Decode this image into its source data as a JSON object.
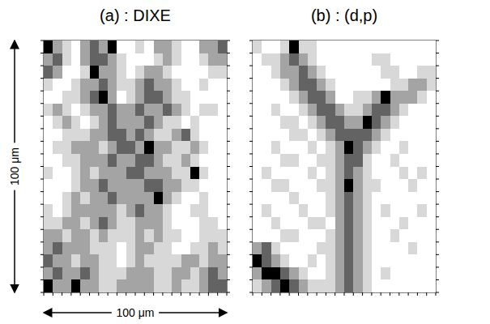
{
  "chart_data": [
    {
      "type": "heatmap",
      "title": "(a) : DIXE",
      "xlim": [
        0,
        100
      ],
      "ylim": [
        0,
        100
      ],
      "xticks": [
        0,
        5,
        10,
        15,
        20,
        25,
        30,
        35,
        40,
        45,
        50,
        55,
        60,
        65,
        70,
        75,
        80,
        85,
        90,
        95,
        100
      ],
      "yticks": [
        0,
        5,
        10,
        15,
        20,
        25,
        30,
        35,
        40,
        45,
        50,
        55,
        60,
        65,
        70,
        75,
        80,
        85,
        90,
        95,
        100
      ],
      "tick_labels": false,
      "colors": [
        "#ffffff",
        "#d8d8d8",
        "#a4a4a4",
        "#636363",
        "#000000"
      ],
      "value_range": [
        0,
        4
      ],
      "cells": [
        [
          4,
          2,
          1,
          0,
          2,
          3,
          2,
          4,
          0,
          0,
          1,
          0,
          2,
          2,
          1,
          0,
          0,
          2,
          2,
          3
        ],
        [
          2,
          3,
          1,
          0,
          2,
          3,
          3,
          2,
          1,
          0,
          0,
          0,
          1,
          2,
          1,
          0,
          0,
          1,
          2,
          2
        ],
        [
          3,
          2,
          0,
          0,
          1,
          4,
          2,
          2,
          1,
          0,
          1,
          2,
          2,
          1,
          0,
          0,
          0,
          0,
          1,
          1
        ],
        [
          1,
          0,
          0,
          1,
          2,
          2,
          3,
          2,
          1,
          1,
          2,
          3,
          2,
          2,
          1,
          0,
          0,
          1,
          0,
          0
        ],
        [
          0,
          0,
          1,
          1,
          2,
          3,
          4,
          2,
          0,
          1,
          2,
          3,
          3,
          2,
          1,
          1,
          0,
          0,
          0,
          0
        ],
        [
          1,
          2,
          1,
          0,
          1,
          2,
          2,
          3,
          2,
          2,
          3,
          2,
          2,
          3,
          2,
          1,
          0,
          1,
          1,
          0
        ],
        [
          0,
          1,
          2,
          1,
          0,
          1,
          2,
          3,
          2,
          2,
          2,
          3,
          2,
          1,
          1,
          0,
          1,
          0,
          0,
          0
        ],
        [
          0,
          0,
          1,
          1,
          1,
          2,
          2,
          3,
          3,
          2,
          3,
          2,
          1,
          1,
          2,
          3,
          1,
          0,
          0,
          0
        ],
        [
          0,
          1,
          1,
          2,
          2,
          2,
          1,
          2,
          3,
          3,
          2,
          4,
          2,
          2,
          1,
          1,
          2,
          1,
          0,
          0
        ],
        [
          0,
          0,
          1,
          1,
          2,
          2,
          2,
          3,
          2,
          2,
          3,
          3,
          2,
          1,
          1,
          2,
          1,
          0,
          0,
          0
        ],
        [
          1,
          0,
          0,
          1,
          2,
          1,
          2,
          2,
          2,
          3,
          3,
          2,
          2,
          2,
          1,
          1,
          4,
          1,
          0,
          0
        ],
        [
          0,
          0,
          0,
          1,
          2,
          2,
          3,
          2,
          2,
          2,
          2,
          3,
          3,
          2,
          2,
          1,
          1,
          0,
          0,
          0
        ],
        [
          0,
          0,
          1,
          2,
          1,
          2,
          2,
          3,
          2,
          2,
          2,
          2,
          4,
          2,
          1,
          0,
          0,
          1,
          0,
          0
        ],
        [
          1,
          0,
          1,
          2,
          2,
          2,
          2,
          2,
          1,
          2,
          3,
          2,
          2,
          1,
          0,
          0,
          1,
          1,
          0,
          0
        ],
        [
          1,
          1,
          2,
          2,
          1,
          2,
          3,
          2,
          1,
          1,
          2,
          2,
          2,
          1,
          0,
          0,
          0,
          1,
          1,
          0
        ],
        [
          2,
          2,
          1,
          2,
          2,
          1,
          2,
          1,
          1,
          1,
          2,
          1,
          2,
          1,
          1,
          0,
          0,
          1,
          1,
          1
        ],
        [
          2,
          3,
          2,
          2,
          2,
          1,
          1,
          1,
          0,
          1,
          2,
          2,
          1,
          1,
          0,
          0,
          1,
          1,
          2,
          1
        ],
        [
          3,
          2,
          2,
          1,
          2,
          2,
          1,
          1,
          0,
          1,
          2,
          1,
          1,
          1,
          1,
          2,
          2,
          1,
          2,
          2
        ],
        [
          2,
          3,
          2,
          2,
          3,
          2,
          1,
          1,
          1,
          2,
          2,
          2,
          1,
          1,
          2,
          2,
          1,
          2,
          3,
          2
        ],
        [
          4,
          2,
          2,
          4,
          2,
          2,
          1,
          1,
          2,
          2,
          2,
          2,
          1,
          1,
          2,
          1,
          1,
          2,
          3,
          3
        ]
      ]
    },
    {
      "type": "heatmap",
      "title": "(b) : (d,p)",
      "xlim": [
        0,
        100
      ],
      "ylim": [
        0,
        100
      ],
      "xticks": [
        0,
        5,
        10,
        15,
        20,
        25,
        30,
        35,
        40,
        45,
        50,
        55,
        60,
        65,
        70,
        75,
        80,
        85,
        90,
        95,
        100
      ],
      "yticks": [
        0,
        5,
        10,
        15,
        20,
        25,
        30,
        35,
        40,
        45,
        50,
        55,
        60,
        65,
        70,
        75,
        80,
        85,
        90,
        95,
        100
      ],
      "tick_labels": false,
      "colors": [
        "#ffffff",
        "#d8d8d8",
        "#a4a4a4",
        "#636363",
        "#000000"
      ],
      "value_range": [
        0,
        4
      ],
      "cells": [
        [
          1,
          0,
          0,
          1,
          4,
          1,
          1,
          0,
          0,
          0,
          0,
          0,
          0,
          0,
          0,
          0,
          0,
          0,
          0,
          0
        ],
        [
          0,
          1,
          1,
          2,
          3,
          2,
          1,
          0,
          0,
          0,
          0,
          0,
          0,
          1,
          1,
          0,
          0,
          0,
          0,
          0
        ],
        [
          0,
          0,
          1,
          2,
          2,
          3,
          2,
          1,
          0,
          0,
          0,
          0,
          0,
          0,
          1,
          1,
          0,
          0,
          1,
          1
        ],
        [
          0,
          0,
          0,
          1,
          2,
          3,
          3,
          2,
          1,
          0,
          0,
          0,
          0,
          0,
          0,
          1,
          1,
          2,
          2,
          1
        ],
        [
          0,
          0,
          0,
          0,
          1,
          2,
          3,
          3,
          2,
          0,
          0,
          1,
          1,
          2,
          4,
          2,
          2,
          2,
          1,
          0
        ],
        [
          0,
          0,
          1,
          0,
          0,
          1,
          2,
          3,
          3,
          2,
          1,
          1,
          2,
          3,
          3,
          2,
          1,
          0,
          0,
          0
        ],
        [
          0,
          0,
          0,
          1,
          1,
          0,
          1,
          2,
          3,
          3,
          2,
          2,
          4,
          3,
          2,
          1,
          0,
          0,
          0,
          0
        ],
        [
          0,
          0,
          0,
          0,
          1,
          1,
          0,
          1,
          2,
          3,
          3,
          3,
          3,
          2,
          1,
          0,
          0,
          0,
          0,
          0
        ],
        [
          0,
          0,
          1,
          0,
          0,
          0,
          1,
          0,
          1,
          2,
          4,
          3,
          2,
          1,
          0,
          0,
          1,
          0,
          0,
          0
        ],
        [
          0,
          0,
          0,
          1,
          1,
          0,
          0,
          1,
          1,
          2,
          3,
          3,
          1,
          0,
          0,
          1,
          0,
          0,
          0,
          0
        ],
        [
          0,
          1,
          0,
          0,
          0,
          0,
          1,
          0,
          1,
          2,
          3,
          2,
          1,
          0,
          0,
          0,
          1,
          0,
          1,
          0
        ],
        [
          0,
          0,
          1,
          1,
          0,
          0,
          0,
          1,
          1,
          2,
          4,
          2,
          1,
          1,
          0,
          0,
          0,
          1,
          0,
          0
        ],
        [
          0,
          0,
          0,
          0,
          1,
          0,
          0,
          0,
          1,
          2,
          3,
          2,
          1,
          0,
          0,
          0,
          0,
          0,
          0,
          0
        ],
        [
          0,
          1,
          0,
          0,
          0,
          1,
          0,
          0,
          1,
          2,
          3,
          2,
          1,
          0,
          1,
          0,
          0,
          0,
          1,
          0
        ],
        [
          0,
          0,
          1,
          0,
          0,
          0,
          1,
          1,
          0,
          2,
          3,
          2,
          1,
          0,
          0,
          0,
          1,
          0,
          0,
          0
        ],
        [
          0,
          0,
          0,
          1,
          1,
          0,
          0,
          0,
          1,
          2,
          3,
          2,
          1,
          0,
          0,
          1,
          0,
          0,
          0,
          0
        ],
        [
          2,
          3,
          1,
          0,
          0,
          0,
          0,
          1,
          1,
          2,
          3,
          2,
          1,
          0,
          0,
          0,
          0,
          1,
          0,
          0
        ],
        [
          4,
          3,
          2,
          1,
          0,
          0,
          1,
          0,
          1,
          2,
          3,
          2,
          1,
          0,
          0,
          0,
          0,
          0,
          0,
          0
        ],
        [
          2,
          4,
          4,
          3,
          2,
          1,
          0,
          0,
          1,
          2,
          3,
          2,
          1,
          0,
          1,
          0,
          0,
          0,
          0,
          0
        ],
        [
          1,
          2,
          3,
          4,
          3,
          2,
          1,
          1,
          1,
          2,
          3,
          2,
          1,
          0,
          0,
          0,
          0,
          0,
          0,
          0
        ]
      ]
    }
  ],
  "scale_bars": [
    {
      "label": "100 μm",
      "length": 100,
      "orientation": "vertical"
    },
    {
      "label": "100 μm",
      "length": 100,
      "orientation": "horizontal"
    }
  ]
}
